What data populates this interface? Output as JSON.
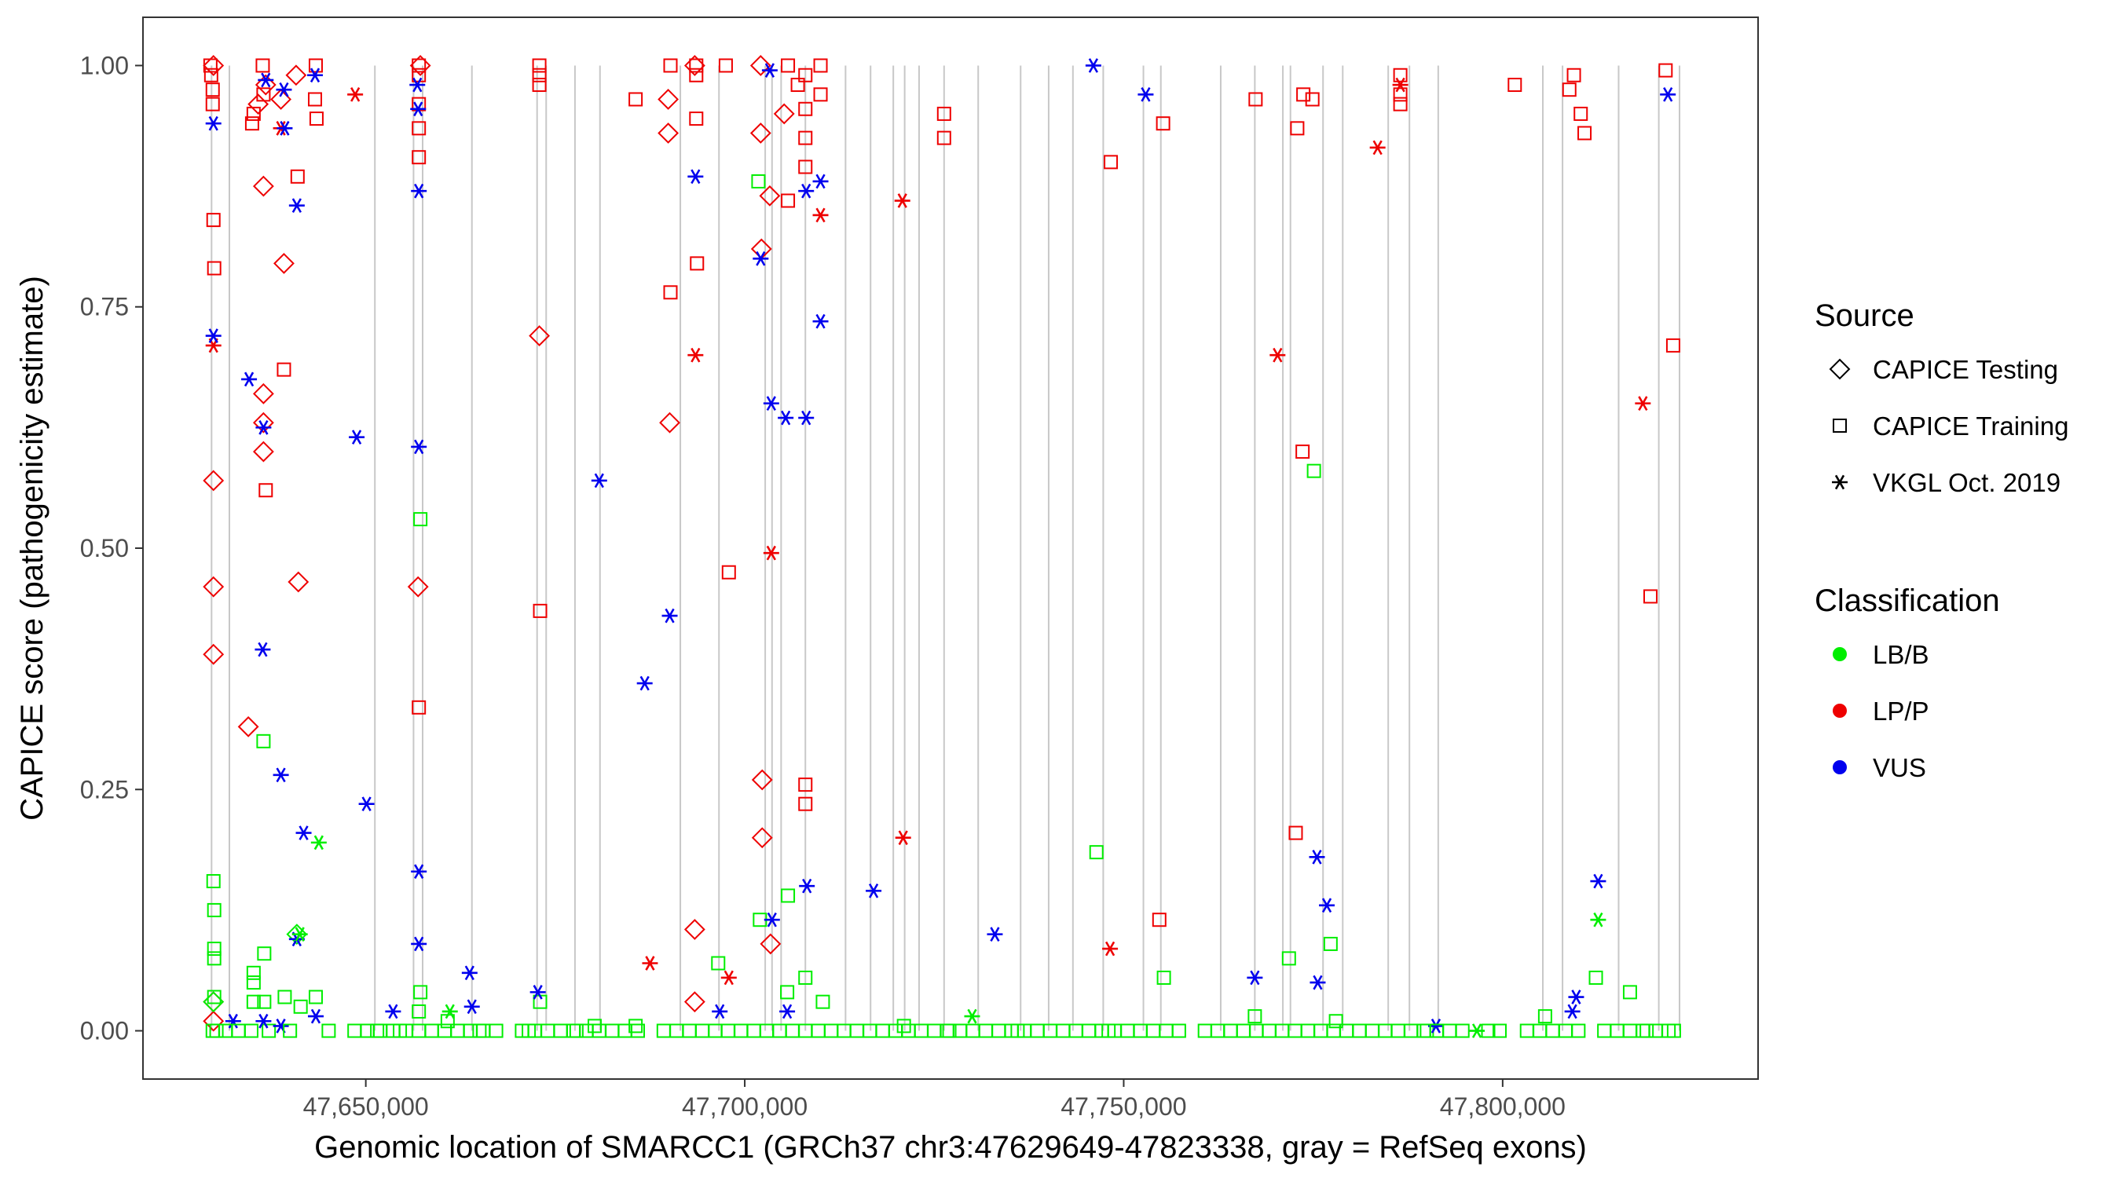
{
  "chart_data": {
    "type": "scatter",
    "title": "",
    "xlabel": "Genomic location of SMARCC1 (GRCh37 chr3:47629649-47823338, gray = RefSeq exons)",
    "ylabel": "CAPICE score (pathogenicity estimate)",
    "xlim": [
      47620600,
      47833700
    ],
    "ylim": [
      -0.05,
      1.05
    ],
    "x_ticks": [
      {
        "value": 47650000,
        "label": "47,650,000"
      },
      {
        "value": 47700000,
        "label": "47,700,000"
      },
      {
        "value": 47750000,
        "label": "47,750,000"
      },
      {
        "value": 47800000,
        "label": "47,800,000"
      }
    ],
    "y_ticks": [
      {
        "value": 0.0,
        "label": "0.00"
      },
      {
        "value": 0.25,
        "label": "0.25"
      },
      {
        "value": 0.5,
        "label": "0.50"
      },
      {
        "value": 0.75,
        "label": "0.75"
      },
      {
        "value": 1.0,
        "label": "1.00"
      }
    ],
    "exons": [
      47629649,
      47632000,
      47651200,
      47656300,
      47657500,
      47664000,
      47672600,
      47673800,
      47677600,
      47680900,
      47691500,
      47696600,
      47702700,
      47703600,
      47704800,
      47708000,
      47713300,
      47716600,
      47719600,
      47721100,
      47723000,
      47726300,
      47730800,
      47736400,
      47740100,
      47743300,
      47747300,
      47752600,
      47754900,
      47762800,
      47767300,
      47771000,
      47772000,
      47776300,
      47778900,
      47784900,
      47787700,
      47791500,
      47805300,
      47807900,
      47815300,
      47820600,
      47823338
    ],
    "legend": {
      "source_title": "Source",
      "source_items": [
        {
          "shape": "diamond",
          "label": "CAPICE Testing"
        },
        {
          "shape": "square",
          "label": "CAPICE Training"
        },
        {
          "shape": "star",
          "label": "VKGL Oct. 2019"
        }
      ],
      "class_title": "Classification",
      "class_items": [
        {
          "key": "LB/B",
          "label": "LB/B",
          "color": "#00ee00"
        },
        {
          "key": "LP/P",
          "label": "LP/P",
          "color": "#ee0000"
        },
        {
          "key": "VUS",
          "label": "VUS",
          "color": "#0000ee"
        }
      ]
    },
    "series": [
      {
        "source": "CAPICE Testing",
        "classification": "LP/P",
        "points": [
          [
            47629900,
            0.57
          ],
          [
            47629900,
            0.46
          ],
          [
            47629900,
            0.39
          ],
          [
            47629900,
            0.03
          ],
          [
            47629900,
            0.01
          ],
          [
            47629900,
            1.0
          ],
          [
            47634500,
            0.315
          ],
          [
            47635800,
            0.96
          ],
          [
            47636500,
            0.875
          ],
          [
            47636500,
            0.66
          ],
          [
            47636500,
            0.63
          ],
          [
            47636500,
            0.6
          ],
          [
            47636800,
            0.98
          ],
          [
            47638800,
            0.965
          ],
          [
            47639200,
            0.795
          ],
          [
            47640800,
            0.99
          ],
          [
            47641100,
            0.465
          ],
          [
            47656900,
            0.46
          ],
          [
            47657200,
            1.0
          ],
          [
            47672900,
            0.72
          ],
          [
            47689900,
            0.965
          ],
          [
            47689900,
            0.93
          ],
          [
            47690100,
            0.63
          ],
          [
            47693400,
            1.0
          ],
          [
            47693400,
            0.105
          ],
          [
            47693400,
            0.03
          ],
          [
            47702100,
            1.0
          ],
          [
            47702100,
            0.93
          ],
          [
            47702200,
            0.81
          ],
          [
            47702300,
            0.26
          ],
          [
            47702300,
            0.2
          ],
          [
            47703300,
            0.865
          ],
          [
            47703400,
            0.09
          ],
          [
            47705200,
            0.95
          ]
        ]
      },
      {
        "source": "CAPICE Testing",
        "classification": "LB/B",
        "points": [
          [
            47629900,
            0.03
          ],
          [
            47640900,
            0.1
          ]
        ]
      },
      {
        "source": "CAPICE Training",
        "classification": "LP/P",
        "points": [
          [
            47629500,
            1.0
          ],
          [
            47629600,
            0.99
          ],
          [
            47629800,
            0.975
          ],
          [
            47629800,
            0.96
          ],
          [
            47629900,
            0.84
          ],
          [
            47630000,
            0.79
          ],
          [
            47635000,
            0.94
          ],
          [
            47635200,
            0.95
          ],
          [
            47636400,
            1.0
          ],
          [
            47636500,
            0.97
          ],
          [
            47636800,
            0.56
          ],
          [
            47639200,
            0.685
          ],
          [
            47641000,
            0.885
          ],
          [
            47643300,
            0.965
          ],
          [
            47643500,
            0.945
          ],
          [
            47643400,
            1.0
          ],
          [
            47657000,
            1.0
          ],
          [
            47657000,
            0.99
          ],
          [
            47657000,
            0.96
          ],
          [
            47657000,
            0.935
          ],
          [
            47657000,
            0.905
          ],
          [
            47657000,
            0.335
          ],
          [
            47672900,
            1.0
          ],
          [
            47672900,
            0.99
          ],
          [
            47672900,
            0.98
          ],
          [
            47673000,
            0.435
          ],
          [
            47685600,
            0.965
          ],
          [
            47690200,
            1.0
          ],
          [
            47690200,
            0.765
          ],
          [
            47693600,
            1.0
          ],
          [
            47693600,
            0.99
          ],
          [
            47693600,
            0.945
          ],
          [
            47693700,
            0.795
          ],
          [
            47697900,
            0.475
          ],
          [
            47697500,
            1.0
          ],
          [
            47705700,
            1.0
          ],
          [
            47705700,
            0.86
          ],
          [
            47707000,
            0.98
          ],
          [
            47708000,
            0.99
          ],
          [
            47708000,
            0.955
          ],
          [
            47708000,
            0.925
          ],
          [
            47708000,
            0.895
          ],
          [
            47708000,
            0.255
          ],
          [
            47708000,
            0.235
          ],
          [
            47710000,
            0.97
          ],
          [
            47710000,
            1.0
          ],
          [
            47726300,
            0.95
          ],
          [
            47726300,
            0.925
          ],
          [
            47748300,
            0.9
          ],
          [
            47754700,
            0.115
          ],
          [
            47755200,
            0.94
          ],
          [
            47767400,
            0.965
          ],
          [
            47772700,
            0.205
          ],
          [
            47772900,
            0.935
          ],
          [
            47773600,
            0.6
          ],
          [
            47773700,
            0.97
          ],
          [
            47774900,
            0.965
          ],
          [
            47786500,
            0.99
          ],
          [
            47786500,
            0.97
          ],
          [
            47786500,
            0.96
          ],
          [
            47801600,
            0.98
          ],
          [
            47808800,
            0.975
          ],
          [
            47809400,
            0.99
          ],
          [
            47810300,
            0.95
          ],
          [
            47810800,
            0.93
          ],
          [
            47819500,
            0.45
          ],
          [
            47821500,
            0.995
          ],
          [
            47822500,
            0.71
          ]
        ]
      },
      {
        "source": "CAPICE Training",
        "classification": "LB/B",
        "points": [
          [
            47629900,
            0.155
          ],
          [
            47630000,
            0.125
          ],
          [
            47630000,
            0.085
          ],
          [
            47630000,
            0.075
          ],
          [
            47630000,
            0.035
          ],
          [
            47630300,
            0.0
          ],
          [
            47635200,
            0.06
          ],
          [
            47635200,
            0.05
          ],
          [
            47635200,
            0.03
          ],
          [
            47636500,
            0.3
          ],
          [
            47636600,
            0.08
          ],
          [
            47636600,
            0.03
          ],
          [
            47637200,
            0.0
          ],
          [
            47639300,
            0.035
          ],
          [
            47641400,
            0.025
          ],
          [
            47643400,
            0.035
          ],
          [
            47651500,
            0.0
          ],
          [
            47654500,
            0.0
          ],
          [
            47657200,
            0.53
          ],
          [
            47657200,
            0.04
          ],
          [
            47657000,
            0.02
          ],
          [
            47660800,
            0.01
          ],
          [
            47665000,
            0.0
          ],
          [
            47671500,
            0.0
          ],
          [
            47673000,
            0.03
          ],
          [
            47677800,
            0.0
          ],
          [
            47680200,
            0.005
          ],
          [
            47685600,
            0.005
          ],
          [
            47696500,
            0.07
          ],
          [
            47701800,
            0.88
          ],
          [
            47702000,
            0.115
          ],
          [
            47705700,
            0.14
          ],
          [
            47705600,
            0.04
          ],
          [
            47708000,
            0.055
          ],
          [
            47710300,
            0.03
          ],
          [
            47721000,
            0.005
          ],
          [
            47727000,
            0.0
          ],
          [
            47736000,
            0.0
          ],
          [
            47746400,
            0.185
          ],
          [
            47748000,
            0.0
          ],
          [
            47755300,
            0.055
          ],
          [
            47767300,
            0.015
          ],
          [
            47771800,
            0.075
          ],
          [
            47775100,
            0.58
          ],
          [
            47777300,
            0.09
          ],
          [
            47778000,
            0.01
          ],
          [
            47790000,
            0.0
          ],
          [
            47799600,
            0.0
          ],
          [
            47805600,
            0.015
          ],
          [
            47812300,
            0.055
          ],
          [
            47816800,
            0.04
          ],
          [
            47819000,
            0.0
          ],
          [
            47822600,
            0.0
          ]
        ]
      },
      {
        "source": "VKGL Oct. 2019",
        "classification": "LP/P",
        "points": [
          [
            47629900,
            0.71
          ],
          [
            47638800,
            0.935
          ],
          [
            47648600,
            0.97
          ],
          [
            47687500,
            0.07
          ],
          [
            47693500,
            0.7
          ],
          [
            47697900,
            0.055
          ],
          [
            47703500,
            0.495
          ],
          [
            47710000,
            0.845
          ],
          [
            47720800,
            0.86
          ],
          [
            47720900,
            0.2
          ],
          [
            47748200,
            0.085
          ],
          [
            47770300,
            0.7
          ],
          [
            47783500,
            0.915
          ],
          [
            47786500,
            0.98
          ],
          [
            47818500,
            0.65
          ]
        ]
      },
      {
        "source": "VKGL Oct. 2019",
        "classification": "VUS",
        "points": [
          [
            47629900,
            0.94
          ],
          [
            47629900,
            0.72
          ],
          [
            47632500,
            0.01
          ],
          [
            47634600,
            0.675
          ],
          [
            47636400,
            0.395
          ],
          [
            47636500,
            0.625
          ],
          [
            47636800,
            0.985
          ],
          [
            47636500,
            0.01
          ],
          [
            47638800,
            0.265
          ],
          [
            47638800,
            0.005
          ],
          [
            47639200,
            0.975
          ],
          [
            47639300,
            0.935
          ],
          [
            47640900,
            0.855
          ],
          [
            47640900,
            0.095
          ],
          [
            47641800,
            0.205
          ],
          [
            47643300,
            0.99
          ],
          [
            47643400,
            0.015
          ],
          [
            47648800,
            0.615
          ],
          [
            47650100,
            0.235
          ],
          [
            47653600,
            0.02
          ],
          [
            47656800,
            0.98
          ],
          [
            47656900,
            0.955
          ],
          [
            47657000,
            0.87
          ],
          [
            47657000,
            0.605
          ],
          [
            47657000,
            0.165
          ],
          [
            47657000,
            0.09
          ],
          [
            47663700,
            0.06
          ],
          [
            47664000,
            0.025
          ],
          [
            47672700,
            0.04
          ],
          [
            47680800,
            0.57
          ],
          [
            47686800,
            0.36
          ],
          [
            47690100,
            0.43
          ],
          [
            47693500,
            0.885
          ],
          [
            47696700,
            0.02
          ],
          [
            47702100,
            0.8
          ],
          [
            47703300,
            0.995
          ],
          [
            47703500,
            0.65
          ],
          [
            47703600,
            0.115
          ],
          [
            47705400,
            0.635
          ],
          [
            47705600,
            0.02
          ],
          [
            47708100,
            0.635
          ],
          [
            47708100,
            0.87
          ],
          [
            47708200,
            0.15
          ],
          [
            47710000,
            0.735
          ],
          [
            47710000,
            0.88
          ],
          [
            47717000,
            0.145
          ],
          [
            47733000,
            0.1
          ],
          [
            47746000,
            1.0
          ],
          [
            47752900,
            0.97
          ],
          [
            47767300,
            0.055
          ],
          [
            47775500,
            0.18
          ],
          [
            47775600,
            0.05
          ],
          [
            47776800,
            0.13
          ],
          [
            47791200,
            0.005
          ],
          [
            47809200,
            0.02
          ],
          [
            47809700,
            0.035
          ],
          [
            47812600,
            0.155
          ],
          [
            47821800,
            0.97
          ]
        ]
      },
      {
        "source": "VKGL Oct. 2019",
        "classification": "LB/B",
        "points": [
          [
            47641300,
            0.1
          ],
          [
            47643800,
            0.195
          ],
          [
            47661100,
            0.02
          ],
          [
            47730000,
            0.015
          ],
          [
            47796600,
            0.0
          ],
          [
            47812600,
            0.115
          ]
        ]
      }
    ]
  }
}
